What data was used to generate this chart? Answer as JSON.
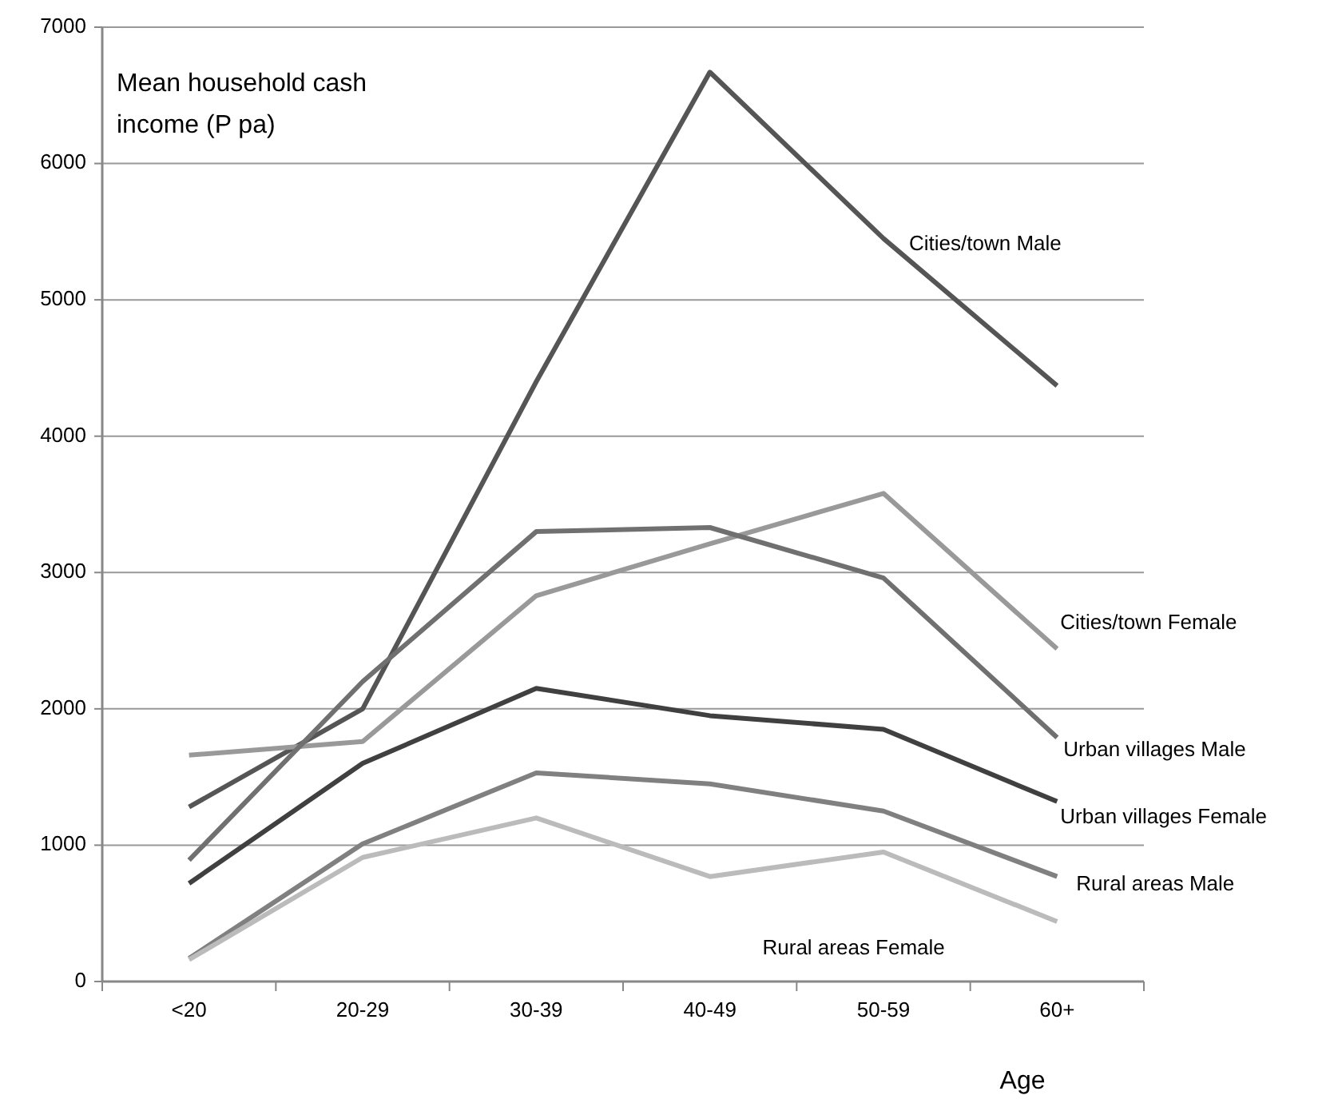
{
  "chart_data": {
    "type": "line",
    "ylabel": "Mean household cash income (P pa)",
    "xlabel": "Age",
    "categories": [
      "<20",
      "20-29",
      "30-39",
      "40-49",
      "50-59",
      "60+"
    ],
    "ylim": [
      0,
      7000
    ],
    "yticks": [
      0,
      1000,
      2000,
      3000,
      4000,
      5000,
      6000,
      7000
    ],
    "grid": "y",
    "marker": "none",
    "line_style": "solid",
    "series": [
      {
        "name": "Cities/town Male",
        "color": "#555555",
        "values": [
          1280,
          2000,
          4400,
          6670,
          5450,
          4370
        ]
      },
      {
        "name": "Cities/town Female",
        "color": "#999999",
        "values": [
          1660,
          1760,
          2830,
          3210,
          3580,
          2440
        ]
      },
      {
        "name": "Urban villages Male",
        "color": "#707070",
        "values": [
          890,
          2200,
          3300,
          3330,
          2960,
          1790
        ]
      },
      {
        "name": "Urban villages Female",
        "color": "#404040",
        "values": [
          720,
          1600,
          2150,
          1950,
          1850,
          1320
        ]
      },
      {
        "name": "Rural areas Male",
        "color": "#808080",
        "values": [
          170,
          1010,
          1530,
          1450,
          1250,
          770
        ]
      },
      {
        "name": "Rural areas Female",
        "color": "#bbbbbb",
        "values": [
          160,
          910,
          1200,
          770,
          950,
          440
        ]
      }
    ]
  }
}
